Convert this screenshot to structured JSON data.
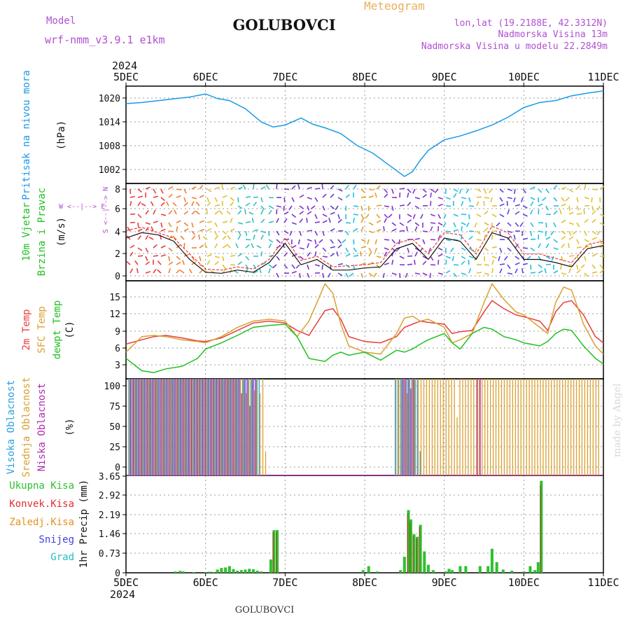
{
  "header": {
    "model_label": "Model",
    "model_name": "wrf-nmm_v3.9.1  e1km",
    "station": "GOLUBOVCI",
    "meteogram_label": "Meteogram",
    "lonlat": "lon,lat (19.2188E, 42.3312N)",
    "elevation": "Nadmorska Visina 13m",
    "model_elevation": "Nadmorska Visina u modelu 22.2849m",
    "year_top": "2024",
    "year_bottom": "2024",
    "footer_station": "GOLUBOVCI",
    "watermark": "made by Angel"
  },
  "x_axis": {
    "days": [
      "5DEC",
      "6DEC",
      "7DEC",
      "8DEC",
      "9DEC",
      "10DEC",
      "11DEC"
    ]
  },
  "colors": {
    "pressure": "#1a9ae8",
    "temp2m": "#e83c3c",
    "sfc_temp": "#d9a030",
    "dewpt": "#20c020",
    "cloud_high": "#2aa0e0",
    "cloud_mid": "#d9a030",
    "cloud_low": "#b02ab0",
    "precip_total": "#2ec02e",
    "precip_conv": "#e03030",
    "precip_frozen": "#e89020",
    "snow": "#4040e0",
    "hail": "#20c0c0",
    "title": "#111111",
    "header_purple": "#b050d0",
    "header_orange": "#e8b060"
  },
  "chart_data": [
    {
      "type": "line",
      "panel": "pressure",
      "ylabel_left": "Pritisak na nivou mora",
      "ylabel_unit": "(hPa)",
      "ylim": [
        998,
        1023
      ],
      "yticks": [
        "1020",
        "1014",
        "1008",
        "1002"
      ],
      "x": [
        0,
        0.2,
        0.5,
        0.8,
        1.0,
        1.15,
        1.3,
        1.5,
        1.7,
        1.85,
        2.0,
        2.2,
        2.35,
        2.5,
        2.7,
        2.9,
        3.1,
        3.3,
        3.5,
        3.6,
        3.7,
        3.8,
        4.0,
        4.2,
        4.4,
        4.6,
        4.8,
        5.0,
        5.2,
        5.4,
        5.6,
        5.8,
        6.0
      ],
      "series": [
        {
          "values": [
            1018.5,
            1018.8,
            1019.5,
            1020.2,
            1021.0,
            1019.8,
            1019.3,
            1017.2,
            1013.8,
            1012.5,
            1013.0,
            1014.8,
            1013.2,
            1012.3,
            1010.8,
            1007.8,
            1005.8,
            1002.8,
            999.8,
            1001.0,
            1004.0,
            1006.5,
            1009.2,
            1010.2,
            1011.5,
            1013.0,
            1015.0,
            1017.5,
            1018.8,
            1019.3,
            1020.5,
            1021.2,
            1021.8
          ]
        }
      ]
    },
    {
      "type": "line",
      "panel": "wind",
      "ylabel_left": [
        "10m Vjetar",
        "Brzina i Pravac"
      ],
      "ylabel_unit": "(m/s)",
      "ylim": [
        -0.5,
        8.6
      ],
      "yticks": [
        "8",
        "6",
        "4",
        "2",
        "0"
      ],
      "compass": "W  <--|-->  E",
      "compass_vertical": "S <--|--> N",
      "x": [
        0,
        0.2,
        0.4,
        0.6,
        0.8,
        1.0,
        1.2,
        1.4,
        1.6,
        1.8,
        2.0,
        2.2,
        2.4,
        2.6,
        2.8,
        3.0,
        3.2,
        3.4,
        3.6,
        3.8,
        4.0,
        4.2,
        4.4,
        4.6,
        4.8,
        5.0,
        5.2,
        5.4,
        5.6,
        5.8,
        6.0
      ],
      "series": [
        {
          "values": [
            3.5,
            4.0,
            3.8,
            3.2,
            1.5,
            0.3,
            0.2,
            0.5,
            0.3,
            1.2,
            3.0,
            1.0,
            1.5,
            0.5,
            0.5,
            0.7,
            0.8,
            2.5,
            3.0,
            1.5,
            3.5,
            3.2,
            1.5,
            4.0,
            3.5,
            1.5,
            1.5,
            1.2,
            0.8,
            2.5,
            2.8
          ]
        },
        {
          "values": [
            4.2,
            4.5,
            4.0,
            3.5,
            2.0,
            0.6,
            0.5,
            0.8,
            0.6,
            1.5,
            3.5,
            1.4,
            1.8,
            0.8,
            0.9,
            1.0,
            1.2,
            3.0,
            3.4,
            2.0,
            4.0,
            3.8,
            2.0,
            4.6,
            4.0,
            2.0,
            2.0,
            1.6,
            1.2,
            2.9,
            3.2
          ]
        }
      ]
    },
    {
      "type": "line",
      "panel": "temperature",
      "ylabel_left": [
        "2m Temp",
        "SFC Temp",
        "dewpt Temp"
      ],
      "ylabel_unit": "(C)",
      "ylim": [
        1.2,
        17
      ],
      "yticks": [
        "15",
        "12",
        "9",
        "6",
        "3"
      ],
      "x": [
        0,
        0.2,
        0.35,
        0.5,
        0.7,
        0.9,
        1.0,
        1.2,
        1.4,
        1.6,
        1.8,
        2.0,
        2.15,
        2.3,
        2.5,
        2.6,
        2.7,
        2.8,
        3.0,
        3.2,
        3.4,
        3.5,
        3.6,
        3.7,
        3.8,
        4.0,
        4.1,
        4.2,
        4.35,
        4.5,
        4.6,
        4.75,
        4.9,
        5.0,
        5.2,
        5.3,
        5.4,
        5.5,
        5.6,
        5.75,
        5.9,
        6.0
      ],
      "series": [
        {
          "name": "2m Temp",
          "values": [
            6.8,
            7.5,
            8.0,
            8.2,
            7.8,
            7.3,
            7.2,
            7.8,
            9.0,
            10.2,
            10.5,
            10.2,
            9.0,
            8.2,
            12.2,
            12.5,
            10.8,
            8.0,
            7.2,
            7.0,
            8.0,
            9.5,
            10.0,
            10.5,
            10.3,
            10.0,
            8.5,
            8.8,
            9.0,
            12.0,
            13.8,
            12.5,
            11.5,
            11.2,
            10.5,
            9.0,
            12.0,
            13.5,
            13.8,
            11.5,
            8.0,
            7.0
          ]
        },
        {
          "name": "SFC Temp",
          "values": [
            5.5,
            8.0,
            8.2,
            8.0,
            7.5,
            7.2,
            7.0,
            8.0,
            9.5,
            10.5,
            10.8,
            10.5,
            8.0,
            10.5,
            16.5,
            15.0,
            10.0,
            6.5,
            5.5,
            5.2,
            8.5,
            11.0,
            11.3,
            10.5,
            10.8,
            9.5,
            7.0,
            7.5,
            8.5,
            13.5,
            16.5,
            14.0,
            12.0,
            11.5,
            9.5,
            8.5,
            13.5,
            16.0,
            15.5,
            10.0,
            6.5,
            5.2
          ]
        },
        {
          "name": "dewpt Temp",
          "values": [
            4.5,
            2.5,
            2.2,
            2.8,
            3.2,
            4.5,
            6.0,
            7.0,
            8.2,
            9.5,
            9.8,
            10.0,
            8.0,
            4.5,
            4.0,
            5.0,
            5.5,
            5.0,
            5.5,
            4.2,
            5.8,
            5.5,
            6.0,
            6.8,
            7.5,
            8.5,
            7.0,
            6.0,
            8.5,
            9.5,
            9.2,
            8.0,
            7.5,
            7.0,
            6.5,
            7.2,
            8.5,
            9.2,
            9.0,
            6.5,
            4.5,
            3.6
          ]
        }
      ]
    },
    {
      "type": "bar",
      "panel": "clouds",
      "ylabel_left": [
        "Visoka Oblacnost",
        "Srednja Oblacnost",
        "Niska Oblacnost"
      ],
      "ylabel_unit": "(%)",
      "ylim": [
        0,
        100
      ],
      "yticks": [
        "100",
        "75",
        "50",
        "25",
        "0"
      ],
      "series": [
        {
          "name": "Visoka Oblacnost",
          "values": [
            100,
            100,
            100,
            100,
            100,
            100,
            100,
            100,
            100,
            100,
            100,
            100,
            100,
            100,
            100,
            100,
            100,
            100,
            100,
            100,
            100,
            100,
            100,
            100,
            100,
            100,
            100,
            100,
            100,
            100,
            100,
            100,
            100,
            100,
            100,
            100,
            100,
            100,
            100,
            100,
            100,
            100,
            100,
            100,
            100,
            100,
            100,
            100,
            0,
            0,
            0,
            0,
            0,
            0,
            0,
            0,
            0,
            0,
            0,
            0,
            0,
            0,
            0,
            0,
            0,
            0,
            0,
            0,
            0,
            0,
            0,
            0,
            0,
            0,
            0,
            0,
            0,
            0,
            0,
            0,
            0,
            0,
            0,
            0,
            0,
            0,
            0,
            0,
            0,
            0,
            0,
            0,
            0,
            0,
            0,
            0,
            100,
            100,
            100,
            100,
            100,
            100,
            100,
            100,
            100,
            25,
            0,
            0,
            0,
            0,
            0,
            0,
            0,
            0,
            0,
            0,
            0,
            0,
            0,
            0,
            0,
            0,
            0,
            0,
            0,
            0,
            0,
            0,
            0,
            0,
            0,
            0,
            0,
            0,
            0,
            0,
            0,
            0,
            0,
            0,
            0,
            0,
            0,
            0,
            0,
            0,
            0,
            0,
            0,
            0,
            0,
            0,
            0,
            0,
            0,
            0,
            0,
            0,
            0,
            0,
            0,
            0,
            0,
            0,
            0,
            0,
            0,
            0,
            0,
            0
          ]
        },
        {
          "name": "Srednja Oblacnost",
          "values": [
            100,
            100,
            100,
            100,
            100,
            100,
            100,
            100,
            100,
            100,
            100,
            100,
            100,
            100,
            100,
            100,
            100,
            100,
            100,
            100,
            100,
            100,
            100,
            100,
            100,
            100,
            100,
            100,
            100,
            100,
            100,
            100,
            100,
            100,
            100,
            100,
            100,
            100,
            100,
            100,
            100,
            100,
            85,
            100,
            100,
            88,
            100,
            85,
            100,
            25,
            0,
            0,
            0,
            0,
            0,
            0,
            0,
            0,
            0,
            0,
            0,
            0,
            0,
            0,
            0,
            0,
            0,
            0,
            0,
            0,
            0,
            0,
            0,
            0,
            0,
            0,
            0,
            0,
            0,
            0,
            0,
            0,
            0,
            0,
            0,
            0,
            0,
            0,
            0,
            0,
            0,
            0,
            0,
            0,
            0,
            0,
            100,
            100,
            100,
            100,
            85,
            100,
            100,
            100,
            100,
            100,
            100,
            100,
            100,
            100,
            100,
            100,
            100,
            100,
            100,
            100,
            100,
            100,
            60,
            100,
            100,
            100,
            100,
            100,
            100,
            100,
            100,
            100,
            100,
            100,
            100,
            100,
            100,
            100,
            100,
            100,
            100,
            100,
            100,
            100,
            100,
            100,
            100,
            100,
            100,
            100,
            100,
            100,
            100,
            100,
            100,
            100,
            100,
            100,
            100,
            100,
            100,
            100,
            100,
            100,
            100,
            100,
            100,
            100,
            100,
            100,
            100,
            100,
            100,
            100,
            100,
            100,
            100,
            100,
            100,
            100
          ]
        },
        {
          "name": "Niska Oblacnost",
          "values": [
            100,
            100,
            100,
            100,
            100,
            100,
            100,
            100,
            100,
            100,
            100,
            100,
            100,
            100,
            100,
            100,
            100,
            100,
            100,
            100,
            100,
            100,
            100,
            100,
            100,
            100,
            100,
            100,
            100,
            100,
            100,
            100,
            100,
            100,
            100,
            100,
            100,
            100,
            100,
            100,
            85,
            100,
            100,
            72,
            100,
            100,
            0,
            0,
            0,
            0,
            0,
            0,
            0,
            0,
            0,
            0,
            0,
            0,
            0,
            0,
            0,
            0,
            0,
            0,
            0,
            0,
            0,
            0,
            0,
            0,
            0,
            0,
            0,
            0,
            0,
            0,
            0,
            0,
            0,
            0,
            0,
            0,
            0,
            0,
            0,
            0,
            0,
            0,
            0,
            0,
            0,
            0,
            0,
            0,
            0,
            0,
            0,
            0,
            100,
            100,
            100,
            90,
            100,
            0,
            0,
            0,
            0,
            0,
            0,
            0,
            0,
            0,
            0,
            0,
            0,
            0,
            0,
            0,
            0,
            0,
            0,
            0,
            0,
            0,
            0,
            100,
            100,
            0,
            0,
            0,
            0,
            0,
            0,
            0,
            0,
            0,
            0,
            0,
            0,
            0,
            0,
            0,
            0,
            0,
            0,
            0,
            0,
            0,
            0,
            0,
            0,
            0,
            0,
            0,
            0,
            0,
            0,
            0,
            0,
            0,
            0,
            0,
            0,
            0,
            0,
            0,
            0,
            0,
            0,
            0,
            0,
            0
          ]
        }
      ]
    },
    {
      "type": "bar",
      "panel": "precipitation",
      "ylabel_left": [
        "Ukupna Kisa",
        "Konvek.Kisa",
        "Zaledj.Kisa",
        "Snijeg",
        "Grad"
      ],
      "ylabel_unit": "1hr Precip (mm)",
      "ylim": [
        0,
        3.65
      ],
      "yticks": [
        "3.65",
        "2.92",
        "2.19",
        "1.46",
        "0.73",
        "0"
      ],
      "x": [
        0.62,
        0.68,
        0.72,
        0.85,
        1.0,
        1.05,
        1.1,
        1.15,
        1.2,
        1.25,
        1.3,
        1.35,
        1.4,
        1.45,
        1.5,
        1.55,
        1.6,
        1.65,
        1.7,
        1.82,
        1.86,
        1.9,
        2.98,
        3.05,
        3.16,
        3.45,
        3.5,
        3.55,
        3.58,
        3.62,
        3.66,
        3.7,
        3.75,
        3.8,
        3.86,
        4.02,
        4.06,
        4.1,
        4.2,
        4.27,
        4.45,
        4.55,
        4.6,
        4.66,
        4.74,
        4.85,
        5.0,
        5.08,
        5.14,
        5.18,
        5.22
      ],
      "series": [
        {
          "name": "Ukupna Kisa",
          "values": [
            0.05,
            0.07,
            0.05,
            0.02,
            0.03,
            0.04,
            0.02,
            0.12,
            0.18,
            0.2,
            0.25,
            0.14,
            0.08,
            0.1,
            0.12,
            0.15,
            0.13,
            0.08,
            0.05,
            0.5,
            1.6,
            1.6,
            0.1,
            0.25,
            0.05,
            0.1,
            0.6,
            2.35,
            2.0,
            1.45,
            1.35,
            1.8,
            0.8,
            0.3,
            0.1,
            0.05,
            0.15,
            0.1,
            0.25,
            0.25,
            0.25,
            0.25,
            0.9,
            0.4,
            0.12,
            0.08,
            0.05,
            0.25,
            0.1,
            0.4,
            3.45
          ]
        }
      ]
    }
  ]
}
